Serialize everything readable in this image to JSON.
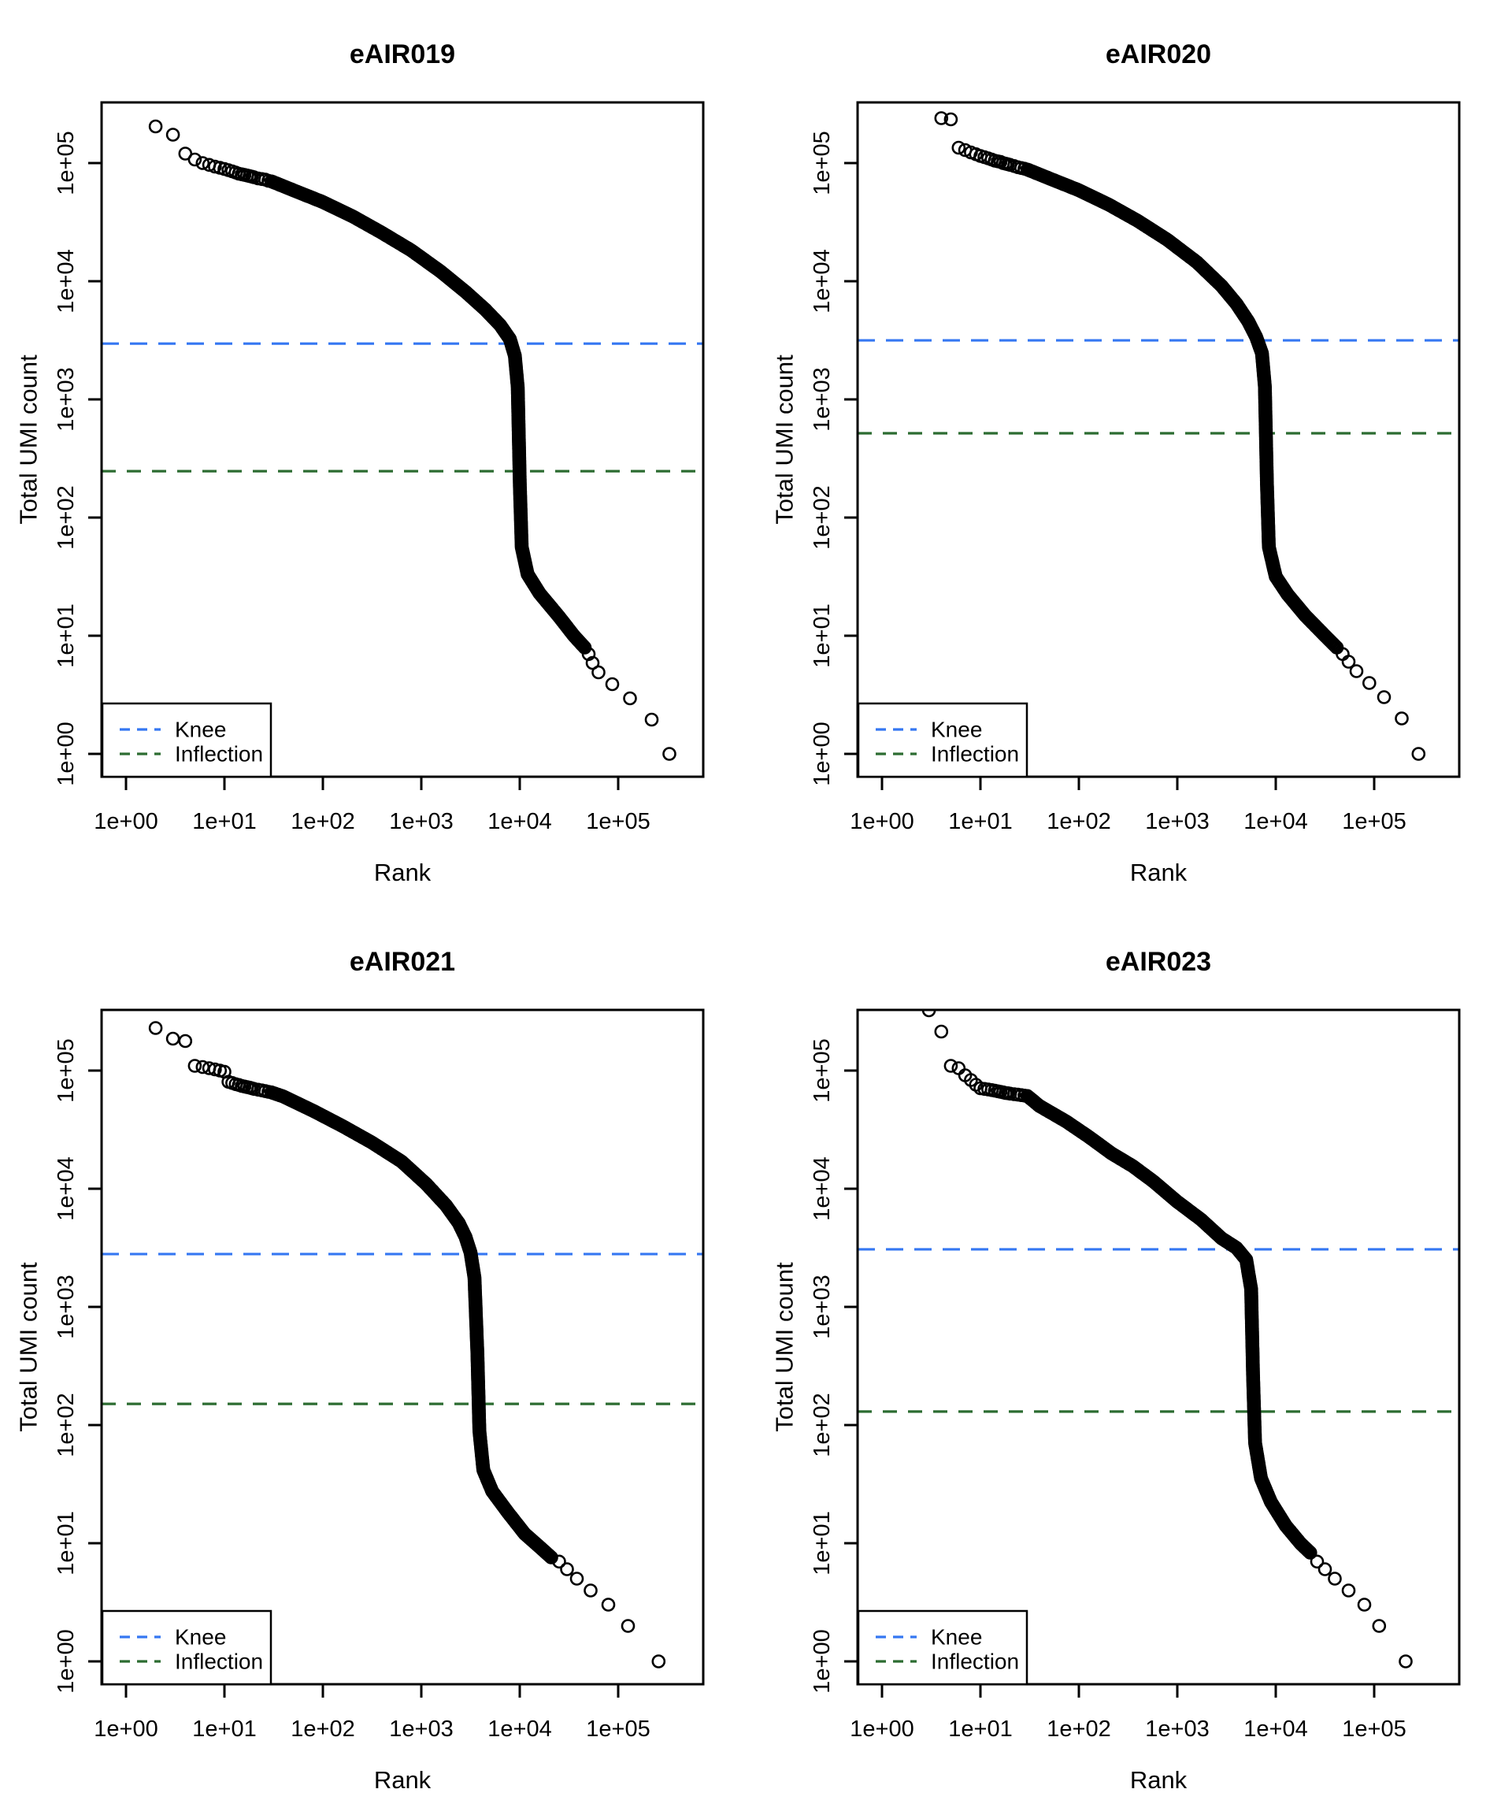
{
  "figure_title": "Barcode rank knee plots",
  "colors": {
    "knee_line": "#3577F2",
    "inflection_line": "#2C6C31",
    "points": "#000000",
    "axis": "#000000",
    "background": "#ffffff"
  },
  "legend": {
    "items": [
      {
        "label": "Knee",
        "color_key": "knee_line"
      },
      {
        "label": "Inflection",
        "color_key": "inflection_line"
      }
    ]
  },
  "chart_data": [
    {
      "type": "scatter",
      "title": "eAIR019",
      "xlabel": "Rank",
      "ylabel": "Total UMI count",
      "xscale": "log",
      "yscale": "log",
      "x_ticks": [
        "1e+00",
        "1e+01",
        "1e+02",
        "1e+03",
        "1e+04",
        "1e+05"
      ],
      "y_ticks": [
        "1e+00",
        "1e+01",
        "1e+02",
        "1e+03",
        "1e+04",
        "1e+05"
      ],
      "legend": [
        "Knee",
        "Inflection"
      ],
      "knee": 2965,
      "inflection": 247,
      "points_log10": {
        "head": [
          [
            0,
            5.57
          ],
          [
            0.301,
            5.31
          ],
          [
            0.477,
            5.24
          ],
          [
            0.602,
            5.08
          ],
          [
            0.699,
            5.03
          ],
          [
            0.778,
            5.0
          ],
          [
            0.845,
            4.985
          ],
          [
            0.903,
            4.97
          ],
          [
            0.954,
            4.96
          ],
          [
            1.0,
            4.95
          ],
          [
            1.041,
            4.94
          ],
          [
            1.079,
            4.93
          ],
          [
            1.114,
            4.92
          ],
          [
            1.146,
            4.91
          ],
          [
            1.176,
            4.905
          ],
          [
            1.204,
            4.9
          ],
          [
            1.23,
            4.895
          ],
          [
            1.255,
            4.89
          ],
          [
            1.279,
            4.885
          ],
          [
            1.301,
            4.88
          ],
          [
            1.342,
            4.87
          ],
          [
            1.38,
            4.865
          ],
          [
            1.415,
            4.86
          ],
          [
            1.447,
            4.85
          ]
        ],
        "band": [
          [
            1.477,
            4.845
          ],
          [
            1.7,
            4.77
          ],
          [
            2.0,
            4.67
          ],
          [
            2.3,
            4.55
          ],
          [
            2.6,
            4.41
          ],
          [
            2.9,
            4.26
          ],
          [
            3.2,
            4.08
          ],
          [
            3.45,
            3.91
          ],
          [
            3.65,
            3.76
          ],
          [
            3.8,
            3.63
          ],
          [
            3.9,
            3.51
          ],
          [
            3.95,
            3.37
          ],
          [
            3.98,
            3.1
          ],
          [
            4.0,
            2.3
          ],
          [
            4.02,
            1.75
          ],
          [
            4.08,
            1.52
          ],
          [
            4.2,
            1.36
          ],
          [
            4.4,
            1.16
          ],
          [
            4.55,
            1.0
          ],
          [
            4.66,
            0.9
          ]
        ],
        "tail": [
          [
            4.7,
            0.845
          ],
          [
            4.74,
            0.77
          ],
          [
            4.8,
            0.69
          ],
          [
            4.94,
            0.59
          ],
          [
            5.12,
            0.47
          ],
          [
            5.34,
            0.29
          ],
          [
            5.52,
            0
          ]
        ]
      }
    },
    {
      "type": "scatter",
      "title": "eAIR020",
      "xlabel": "Rank",
      "ylabel": "Total UMI count",
      "xscale": "log",
      "yscale": "log",
      "x_ticks": [
        "1e+00",
        "1e+01",
        "1e+02",
        "1e+03",
        "1e+04",
        "1e+05"
      ],
      "y_ticks": [
        "1e+00",
        "1e+01",
        "1e+02",
        "1e+03",
        "1e+04",
        "1e+05"
      ],
      "legend": [
        "Knee",
        "Inflection"
      ],
      "knee": 3160,
      "inflection": 517,
      "points_log10": {
        "head": [
          [
            0.602,
            5.38
          ],
          [
            0.699,
            5.37
          ],
          [
            0.778,
            5.13
          ],
          [
            0.845,
            5.11
          ],
          [
            0.903,
            5.09
          ],
          [
            0.954,
            5.075
          ],
          [
            1.0,
            5.06
          ],
          [
            1.041,
            5.05
          ],
          [
            1.079,
            5.04
          ],
          [
            1.114,
            5.03
          ],
          [
            1.146,
            5.02
          ],
          [
            1.176,
            5.015
          ],
          [
            1.204,
            5.01
          ],
          [
            1.23,
            5.0
          ],
          [
            1.255,
            4.995
          ],
          [
            1.279,
            4.99
          ],
          [
            1.301,
            4.985
          ],
          [
            1.342,
            4.975
          ],
          [
            1.38,
            4.965
          ],
          [
            1.415,
            4.958
          ],
          [
            1.447,
            4.952
          ]
        ],
        "band": [
          [
            1.477,
            4.945
          ],
          [
            1.7,
            4.87
          ],
          [
            2.0,
            4.77
          ],
          [
            2.3,
            4.65
          ],
          [
            2.6,
            4.51
          ],
          [
            2.9,
            4.35
          ],
          [
            3.2,
            4.16
          ],
          [
            3.45,
            3.96
          ],
          [
            3.6,
            3.81
          ],
          [
            3.72,
            3.66
          ],
          [
            3.8,
            3.53
          ],
          [
            3.86,
            3.39
          ],
          [
            3.89,
            3.1
          ],
          [
            3.91,
            2.3
          ],
          [
            3.93,
            1.75
          ],
          [
            4.0,
            1.5
          ],
          [
            4.12,
            1.35
          ],
          [
            4.3,
            1.17
          ],
          [
            4.5,
            1.0
          ],
          [
            4.62,
            0.9
          ]
        ],
        "tail": [
          [
            4.68,
            0.845
          ],
          [
            4.74,
            0.78
          ],
          [
            4.82,
            0.7
          ],
          [
            4.95,
            0.6
          ],
          [
            5.1,
            0.48
          ],
          [
            5.28,
            0.3
          ],
          [
            5.45,
            0
          ]
        ]
      }
    },
    {
      "type": "scatter",
      "title": "eAIR021",
      "xlabel": "Rank",
      "ylabel": "Total UMI count",
      "xscale": "log",
      "yscale": "log",
      "x_ticks": [
        "1e+00",
        "1e+01",
        "1e+02",
        "1e+03",
        "1e+04",
        "1e+05"
      ],
      "y_ticks": [
        "1e+00",
        "1e+01",
        "1e+02",
        "1e+03",
        "1e+04",
        "1e+05"
      ],
      "legend": [
        "Knee",
        "Inflection"
      ],
      "knee": 2800,
      "inflection": 151,
      "points_log10": {
        "head": [
          [
            0.301,
            5.36
          ],
          [
            0.477,
            5.27
          ],
          [
            0.602,
            5.25
          ],
          [
            0.699,
            5.04
          ],
          [
            0.778,
            5.03
          ],
          [
            0.845,
            5.02
          ],
          [
            0.903,
            5.01
          ],
          [
            0.954,
            5.0
          ],
          [
            1.0,
            4.99
          ],
          [
            1.041,
            4.905
          ],
          [
            1.079,
            4.895
          ],
          [
            1.114,
            4.885
          ],
          [
            1.146,
            4.878
          ],
          [
            1.176,
            4.87
          ],
          [
            1.204,
            4.865
          ],
          [
            1.23,
            4.86
          ],
          [
            1.255,
            4.855
          ],
          [
            1.279,
            4.85
          ],
          [
            1.301,
            4.845
          ],
          [
            1.342,
            4.838
          ],
          [
            1.38,
            4.832
          ],
          [
            1.415,
            4.826
          ],
          [
            1.447,
            4.82
          ]
        ],
        "band": [
          [
            1.477,
            4.815
          ],
          [
            1.6,
            4.78
          ],
          [
            1.9,
            4.66
          ],
          [
            2.2,
            4.53
          ],
          [
            2.5,
            4.39
          ],
          [
            2.8,
            4.23
          ],
          [
            3.05,
            4.04
          ],
          [
            3.25,
            3.86
          ],
          [
            3.38,
            3.71
          ],
          [
            3.45,
            3.59
          ],
          [
            3.5,
            3.46
          ],
          [
            3.54,
            3.25
          ],
          [
            3.57,
            2.6
          ],
          [
            3.59,
            1.95
          ],
          [
            3.63,
            1.62
          ],
          [
            3.72,
            1.44
          ],
          [
            3.88,
            1.26
          ],
          [
            4.05,
            1.08
          ],
          [
            4.2,
            0.97
          ],
          [
            4.32,
            0.88
          ]
        ],
        "tail": [
          [
            4.4,
            0.845
          ],
          [
            4.48,
            0.78
          ],
          [
            4.58,
            0.7
          ],
          [
            4.72,
            0.6
          ],
          [
            4.9,
            0.48
          ],
          [
            5.1,
            0.3
          ],
          [
            5.41,
            0
          ]
        ]
      }
    },
    {
      "type": "scatter",
      "title": "eAIR023",
      "xlabel": "Rank",
      "ylabel": "Total UMI count",
      "xscale": "log",
      "yscale": "log",
      "x_ticks": [
        "1e+00",
        "1e+01",
        "1e+02",
        "1e+03",
        "1e+04",
        "1e+05"
      ],
      "y_ticks": [
        "1e+00",
        "1e+01",
        "1e+02",
        "1e+03",
        "1e+04",
        "1e+05"
      ],
      "legend": [
        "Knee",
        "Inflection"
      ],
      "knee": 3070,
      "inflection": 130,
      "points_log10": {
        "head": [
          [
            0.477,
            5.51
          ],
          [
            0.602,
            5.33
          ],
          [
            0.699,
            5.04
          ],
          [
            0.778,
            5.02
          ],
          [
            0.845,
            4.96
          ],
          [
            0.903,
            4.92
          ],
          [
            0.954,
            4.88
          ],
          [
            1.0,
            4.85
          ],
          [
            1.041,
            4.845
          ],
          [
            1.079,
            4.84
          ],
          [
            1.114,
            4.835
          ],
          [
            1.146,
            4.83
          ],
          [
            1.176,
            4.825
          ],
          [
            1.204,
            4.82
          ],
          [
            1.23,
            4.815
          ],
          [
            1.255,
            4.81
          ],
          [
            1.279,
            4.808
          ],
          [
            1.301,
            4.805
          ],
          [
            1.342,
            4.8
          ],
          [
            1.38,
            4.796
          ],
          [
            1.415,
            4.792
          ],
          [
            1.447,
            4.788
          ]
        ],
        "band": [
          [
            1.477,
            4.785
          ],
          [
            1.6,
            4.7
          ],
          [
            1.87,
            4.57
          ],
          [
            2.1,
            4.44
          ],
          [
            2.33,
            4.3
          ],
          [
            2.55,
            4.19
          ],
          [
            2.76,
            4.06
          ],
          [
            3.0,
            3.89
          ],
          [
            3.24,
            3.74
          ],
          [
            3.45,
            3.58
          ],
          [
            3.6,
            3.5
          ],
          [
            3.7,
            3.4
          ],
          [
            3.75,
            3.15
          ],
          [
            3.77,
            2.4
          ],
          [
            3.79,
            1.85
          ],
          [
            3.85,
            1.55
          ],
          [
            3.95,
            1.35
          ],
          [
            4.1,
            1.15
          ],
          [
            4.25,
            1.0
          ],
          [
            4.35,
            0.92
          ]
        ],
        "tail": [
          [
            4.42,
            0.845
          ],
          [
            4.5,
            0.78
          ],
          [
            4.6,
            0.7
          ],
          [
            4.74,
            0.6
          ],
          [
            4.9,
            0.48
          ],
          [
            5.05,
            0.3
          ],
          [
            5.32,
            0
          ]
        ]
      }
    }
  ]
}
